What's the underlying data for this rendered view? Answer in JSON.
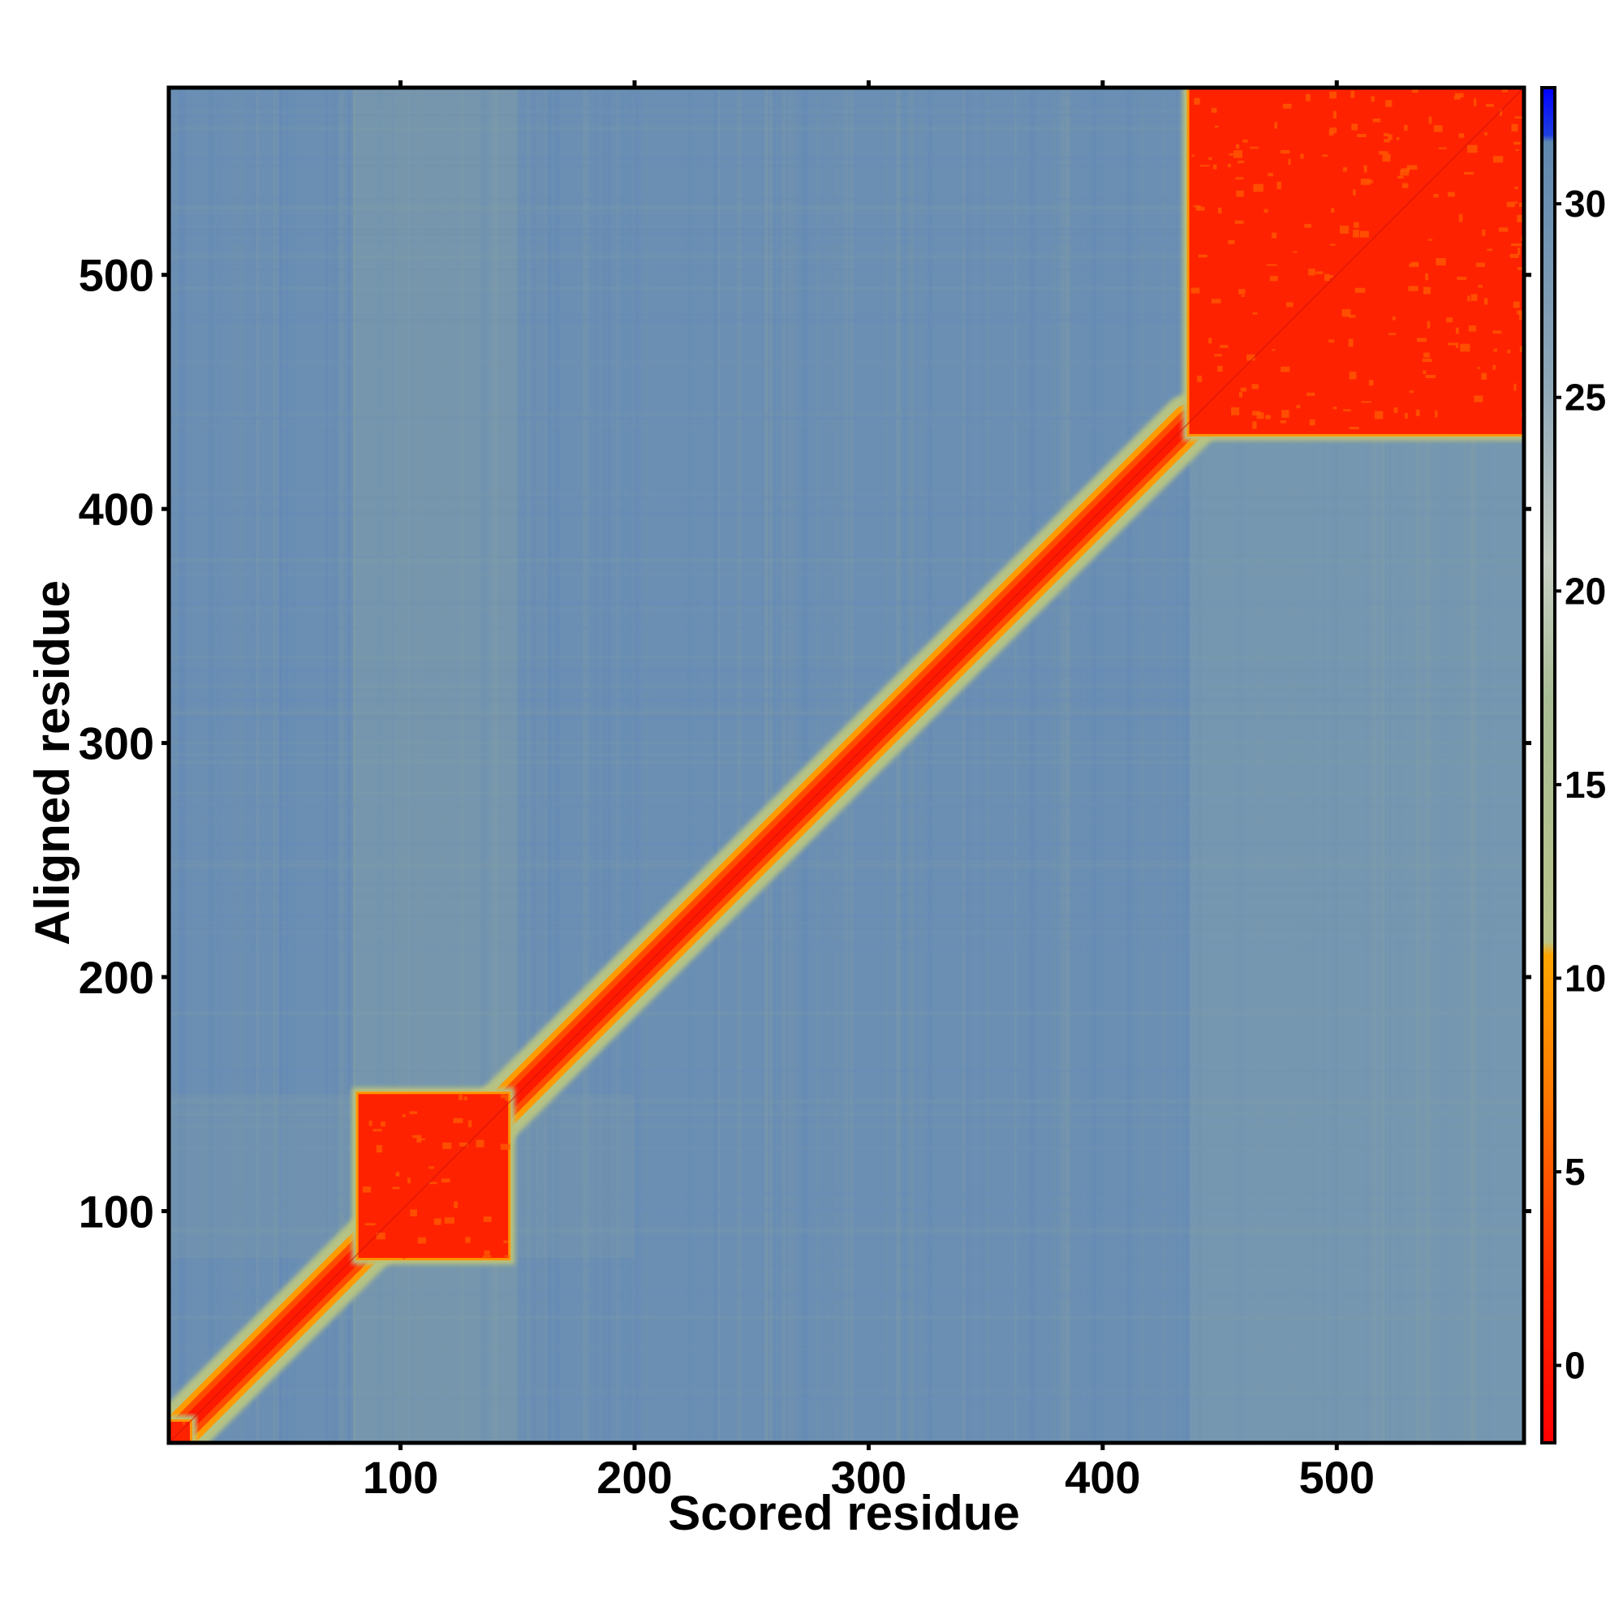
{
  "chart_data": {
    "type": "heatmap",
    "title": "",
    "xlabel": "Scored residue",
    "ylabel": "Aligned residue",
    "xlim": [
      1,
      580
    ],
    "ylim": [
      1,
      580
    ],
    "x_ticks": [
      100,
      200,
      300,
      400,
      500
    ],
    "y_ticks": [
      100,
      200,
      300,
      400,
      500
    ],
    "colorbar": {
      "ticks": [
        0,
        5,
        10,
        15,
        20,
        25,
        30
      ],
      "range": [
        -2,
        33
      ],
      "colors": {
        "low": "#ff0000",
        "mid_low": "#ff8c00",
        "mid": "#a8bf8a",
        "high": "#6a8fb5",
        "top": "#0000ff"
      }
    },
    "blocks": [
      {
        "name": "",
        "x": [
          1,
          10
        ],
        "y": [
          1,
          10
        ],
        "value": 2
      },
      {
        "name": "",
        "x": [
          82,
          146
        ],
        "y": [
          80,
          150
        ],
        "value": 2
      },
      {
        "name": "",
        "x": [
          437,
          580
        ],
        "y": [
          432,
          580
        ],
        "value": 2
      }
    ],
    "diagonal_band": {
      "from": 1,
      "to": 437,
      "value": 3
    },
    "background_value": 28
  }
}
